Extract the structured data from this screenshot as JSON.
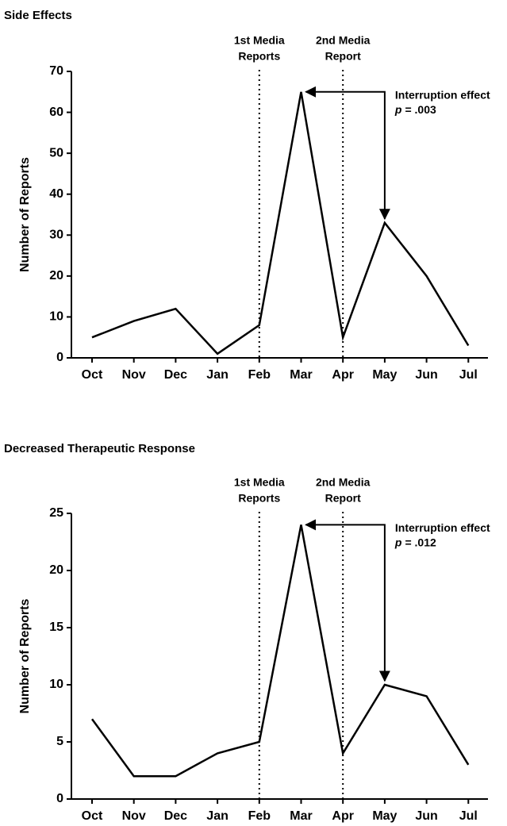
{
  "chart_data": [
    {
      "type": "line",
      "title": "Side Effects",
      "y_label": "Number of Reports",
      "categories": [
        "Oct",
        "Nov",
        "Dec",
        "Jan",
        "Feb",
        "Mar",
        "Apr",
        "May",
        "Jun",
        "Jul"
      ],
      "series": [
        {
          "name": "Side Effects",
          "color": "#000000",
          "values": [
            5,
            9,
            12,
            1,
            8,
            65,
            5,
            33,
            20,
            3
          ]
        }
      ],
      "ylim": [
        0,
        70
      ],
      "yticks": [
        0,
        10,
        20,
        30,
        40,
        50,
        60,
        70
      ],
      "vlines": [
        {
          "category": "Feb",
          "label": [
            "1st Media",
            "Reports"
          ]
        },
        {
          "category": "Apr",
          "label": [
            "2nd Media",
            "Report"
          ]
        }
      ],
      "arrow": {
        "from": "Mar",
        "to": "May",
        "label": "Interruption effect",
        "p_symbol": "p",
        "p_value": "= .003"
      }
    },
    {
      "type": "line",
      "title": "Decreased Therapeutic Response",
      "y_label": "Number of Reports",
      "categories": [
        "Oct",
        "Nov",
        "Dec",
        "Jan",
        "Feb",
        "Mar",
        "Apr",
        "May",
        "Jun",
        "Jul"
      ],
      "series": [
        {
          "name": "Decreased Therapeutic Response",
          "color": "#000000",
          "values": [
            7,
            2,
            2,
            4,
            5,
            24,
            4,
            10,
            9,
            3
          ]
        }
      ],
      "ylim": [
        0,
        25
      ],
      "yticks": [
        0,
        5,
        10,
        15,
        20,
        25
      ],
      "vlines": [
        {
          "category": "Feb",
          "label": [
            "1st Media",
            "Reports"
          ]
        },
        {
          "category": "Apr",
          "label": [
            "2nd Media",
            "Report"
          ]
        }
      ],
      "arrow": {
        "from": "Mar",
        "to": "May",
        "label": "Interruption effect",
        "p_symbol": "p",
        "p_value": "= .012"
      }
    }
  ]
}
